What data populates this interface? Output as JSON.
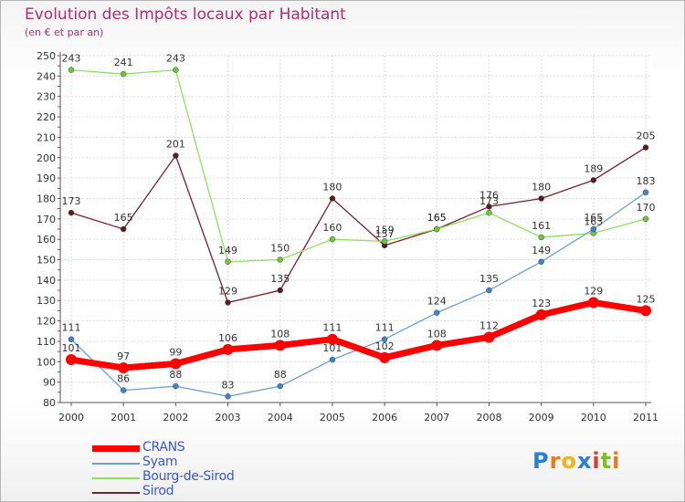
{
  "header": {
    "title": "Evolution des Impôts locaux par Habitant",
    "subtitle": "(en € et par an)"
  },
  "logo": {
    "text": "Proxiti",
    "letters": [
      "P",
      "r",
      "o",
      "x",
      "i",
      "t",
      "i"
    ],
    "colors": [
      "#2a7fd4",
      "#e87a1a",
      "#f0b418",
      "#2a7fd4",
      "#e23a2a",
      "#7cbf2a",
      "#e87a1a"
    ]
  },
  "chart_data": {
    "type": "line",
    "title": "Evolution des Impôts locaux par Habitant",
    "subtitle": "(en € et par an)",
    "xlabel": "",
    "ylabel": "",
    "categories": [
      "2000",
      "2001",
      "2002",
      "2003",
      "2004",
      "2005",
      "2006",
      "2007",
      "2008",
      "2009",
      "2010",
      "2011"
    ],
    "ylim": [
      80,
      250
    ],
    "yticks": [
      80,
      90,
      100,
      110,
      120,
      130,
      140,
      150,
      160,
      170,
      180,
      190,
      200,
      210,
      220,
      230,
      240,
      250
    ],
    "grid": true,
    "legend_position": "bottom-left",
    "series": [
      {
        "name": "Sirod",
        "color": "#7a1e2a",
        "marker_color": "#5a1a22",
        "values": [
          173,
          165,
          201,
          129,
          135,
          180,
          157,
          165,
          176,
          180,
          189,
          205
        ]
      },
      {
        "name": "Bourg-de-Sirod",
        "color": "#8fe05a",
        "marker_color": "#6dc63c",
        "values": [
          243,
          241,
          243,
          149,
          150,
          160,
          159,
          165,
          173,
          161,
          163,
          170
        ]
      },
      {
        "name": "Syam",
        "color": "#6a9fcf",
        "marker_color": "#3d86c9",
        "values": [
          111,
          86,
          88,
          83,
          88,
          101,
          111,
          124,
          135,
          149,
          165,
          183
        ]
      },
      {
        "name": "CRANS",
        "color": "#ff0000",
        "marker_color": "#ff0000",
        "values": [
          101,
          97,
          99,
          106,
          108,
          111,
          102,
          108,
          112,
          123,
          129,
          125
        ]
      }
    ],
    "legend": [
      "CRANS",
      "Syam",
      "Bourg-de-Sirod",
      "Sirod"
    ]
  }
}
